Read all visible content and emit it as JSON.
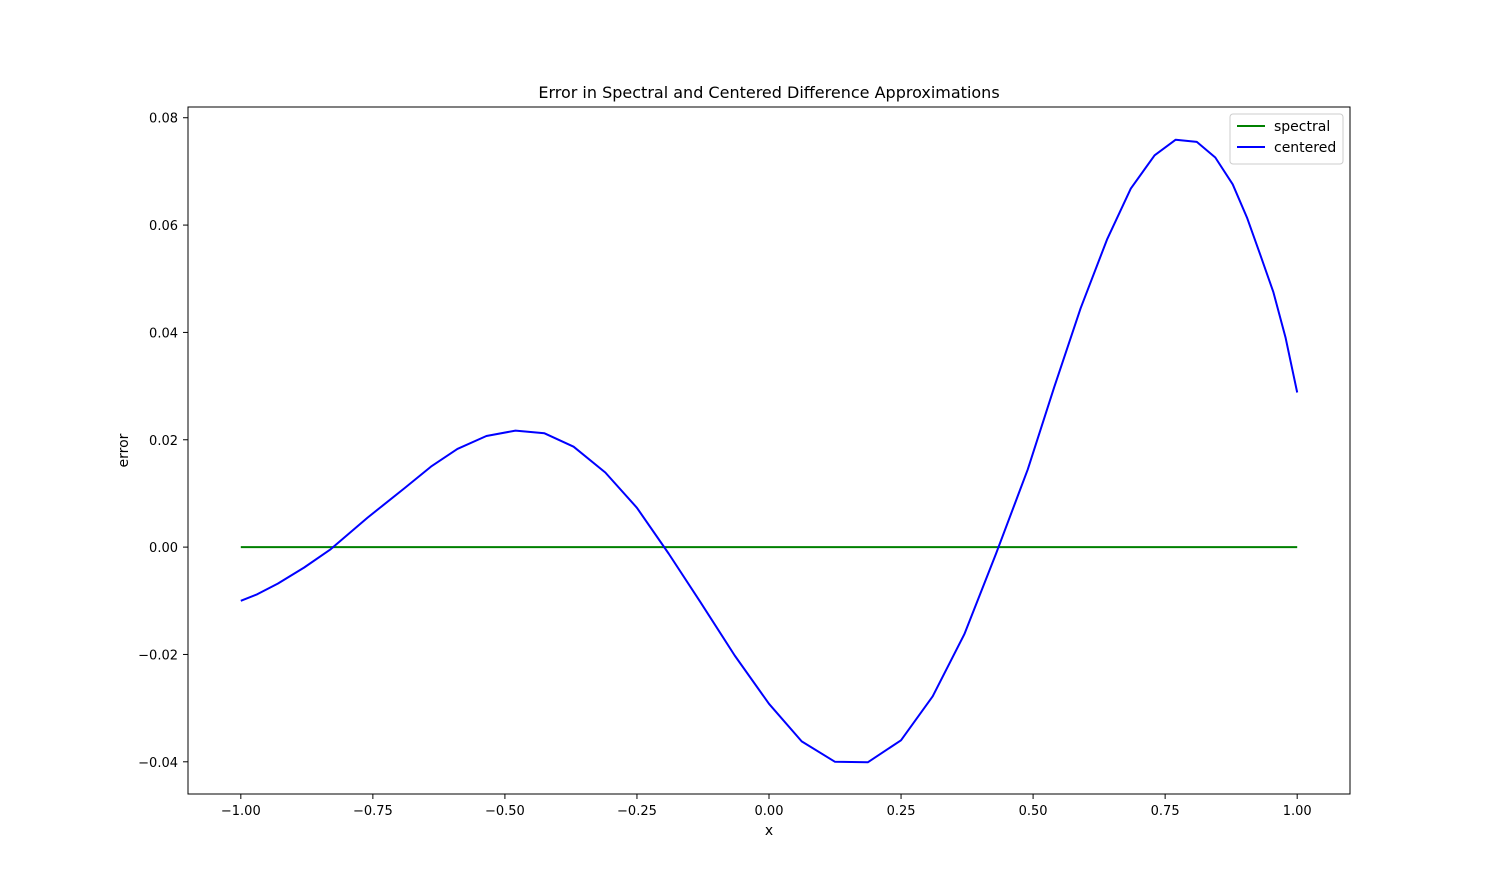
{
  "chart_data": {
    "type": "line",
    "title": "Error in Spectral and Centered Difference Approximations",
    "xlabel": "x",
    "ylabel": "error",
    "xlim": [
      -1.1,
      1.1
    ],
    "ylim": [
      -0.046,
      0.082
    ],
    "xticks": [
      -1.0,
      -0.75,
      -0.5,
      -0.25,
      0.0,
      0.25,
      0.5,
      0.75,
      1.0
    ],
    "xtick_labels": [
      "−1.00",
      "−0.75",
      "−0.50",
      "−0.25",
      "0.00",
      "0.25",
      "0.50",
      "0.75",
      "1.00"
    ],
    "yticks": [
      -0.04,
      -0.02,
      0.0,
      0.02,
      0.04,
      0.06,
      0.08
    ],
    "ytick_labels": [
      "−0.04",
      "−0.02",
      "0.00",
      "0.02",
      "0.04",
      "0.06",
      "0.08"
    ],
    "grid": false,
    "legend_position": "top-right",
    "series": [
      {
        "name": "spectral",
        "color": "#008000",
        "x": [
          -1.0,
          1.0
        ],
        "y": [
          0.0,
          0.0
        ]
      },
      {
        "name": "centered",
        "color": "#0000ff",
        "x": [
          -1.0,
          -0.969,
          -0.93,
          -0.88,
          -0.83,
          -0.76,
          -0.69,
          -0.64,
          -0.59,
          -0.535,
          -0.48,
          -0.425,
          -0.37,
          -0.31,
          -0.25,
          -0.19,
          -0.13,
          -0.065,
          0.0,
          0.062,
          0.125,
          0.187,
          0.25,
          0.31,
          0.37,
          0.43,
          0.49,
          0.54,
          0.59,
          0.64,
          0.685,
          0.73,
          0.77,
          0.81,
          0.845,
          0.878,
          0.905,
          0.93,
          0.955,
          0.978,
          1.0
        ],
        "y": [
          -0.01,
          -0.0088,
          -0.0068,
          -0.0038,
          -0.0004,
          0.0055,
          0.011,
          0.015,
          0.0183,
          0.0207,
          0.0217,
          0.0212,
          0.0187,
          0.0139,
          0.0073,
          -0.0012,
          -0.0102,
          -0.0202,
          -0.0292,
          -0.0362,
          -0.04,
          -0.0401,
          -0.036,
          -0.0278,
          -0.0162,
          -0.0012,
          0.0145,
          0.0298,
          0.0445,
          0.0573,
          0.0668,
          0.073,
          0.0759,
          0.0755,
          0.0726,
          0.0676,
          0.0614,
          0.0545,
          0.0475,
          0.039,
          0.0288
        ]
      }
    ]
  }
}
